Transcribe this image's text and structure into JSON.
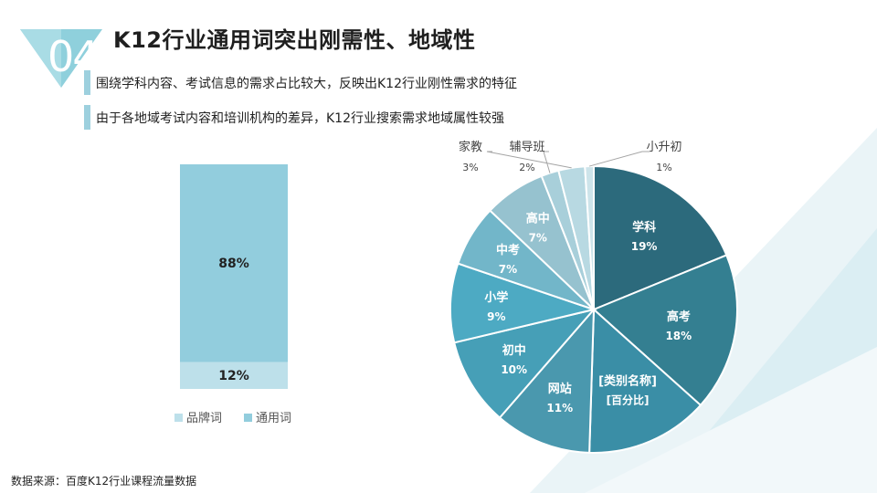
{
  "slide": {
    "number": "04",
    "title": "K12行业通用词突出刚需性、地域性",
    "bullets": [
      "围绕学科内容、考试信息的需求占比较大，反映出K12行业刚性需求的特征",
      "由于各地域考试内容和培训机构的差异，K12行业搜索需求地域属性较强"
    ],
    "source": "数据来源：百度K12行业课程流量数据"
  },
  "chart_data": [
    {
      "type": "bar",
      "stacked": true,
      "categories": [
        ""
      ],
      "series": [
        {
          "name": "品牌词",
          "values": [
            12
          ],
          "label": "12%",
          "color": "#bde0ea"
        },
        {
          "name": "通用词",
          "values": [
            88
          ],
          "label": "88%",
          "color": "#92cddd"
        }
      ],
      "ylim": [
        0,
        100
      ],
      "legend": "bottom"
    },
    {
      "type": "pie",
      "slices": [
        {
          "name": "学科",
          "value": 19,
          "label": "19%",
          "color": "#2c6a7c"
        },
        {
          "name": "高考",
          "value": 18,
          "label": "18%",
          "color": "#347f91"
        },
        {
          "name": "[类别名称]",
          "value": 14,
          "label": "[百分比]",
          "color": "#3a8ea6"
        },
        {
          "name": "网站",
          "value": 11,
          "label": "11%",
          "color": "#4a98ae"
        },
        {
          "name": "初中",
          "value": 10,
          "label": "10%",
          "color": "#469fb7"
        },
        {
          "name": "小学",
          "value": 9,
          "label": "9%",
          "color": "#4daac3"
        },
        {
          "name": "中考",
          "value": 7,
          "label": "7%",
          "color": "#72b6c9"
        },
        {
          "name": "高中",
          "value": 7,
          "label": "7%",
          "color": "#96c2cf"
        },
        {
          "name": "辅导班",
          "value": 2,
          "label": "2%",
          "color": "#a8cfda"
        },
        {
          "name": "家教",
          "value": 3,
          "label": "3%",
          "color": "#b8d9e2"
        },
        {
          "name": "小升初",
          "value": 1,
          "label": "1%",
          "color": "#cde4ea"
        }
      ]
    }
  ]
}
